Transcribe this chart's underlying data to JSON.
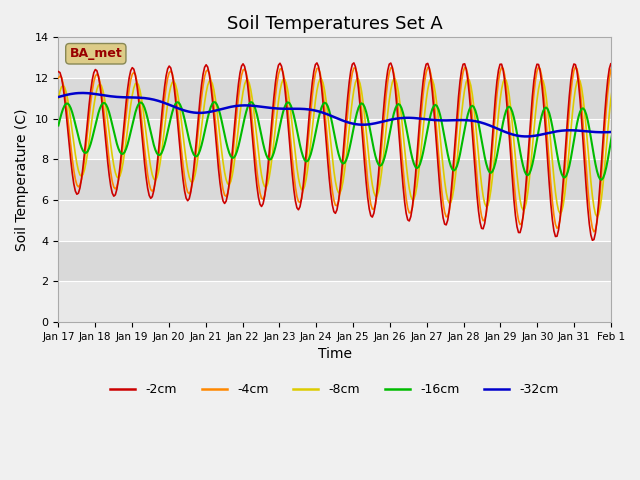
{
  "title": "Soil Temperatures Set A",
  "xlabel": "Time",
  "ylabel": "Soil Temperature (C)",
  "ylim": [
    0,
    14
  ],
  "yticks": [
    0,
    2,
    4,
    6,
    8,
    10,
    12,
    14
  ],
  "x_labels": [
    "Jan 17",
    "Jan 18",
    "Jan 19",
    "Jan 20",
    "Jan 21",
    "Jan 22",
    "Jan 23",
    "Jan 24",
    "Jan 25",
    "Jan 26",
    "Jan 27",
    "Jan 28",
    "Jan 29",
    "Jan 30",
    "Jan 31",
    "Feb 1"
  ],
  "series_colors": {
    "-2cm": "#cc0000",
    "-4cm": "#ff8800",
    "-8cm": "#ddcc00",
    "-16cm": "#00bb00",
    "-32cm": "#0000cc"
  },
  "annotation_text": "BA_met",
  "annotation_color": "#990000",
  "annotation_bg": "#ddcc88",
  "fig_bg": "#f0f0f0",
  "ax_bg": "#e8e8e8",
  "band_color": "#d0d0d0",
  "grid_color": "#ffffff",
  "title_fontsize": 13,
  "label_fontsize": 10,
  "tick_fontsize": 8,
  "xtick_fontsize": 7.5
}
